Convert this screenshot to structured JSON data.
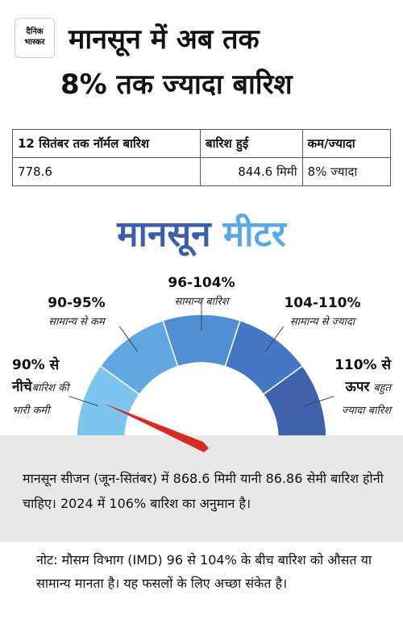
{
  "logo": {
    "line1": "दैनिक",
    "line2": "भास्कर"
  },
  "header": {
    "title_line1": "मानसून में अब तक",
    "title_line2": "8% तक ज्यादा बारिश"
  },
  "table": {
    "headers": [
      "12 सितंबर तक नॉर्मल बारिश",
      "बारिश हुई",
      "कम/ज्यादा"
    ],
    "rows": [
      [
        "778.6",
        "844.6 मिमी",
        "8% ज्यादा"
      ]
    ]
  },
  "meter": {
    "title_part1": "मानसून",
    "title_part2": "मीटर",
    "segments": [
      {
        "range": "90% से नीचे",
        "description": "बारिश की भारी कमी"
      },
      {
        "range": "90-95%",
        "description": "सामान्य से कम"
      },
      {
        "range": "96-104%",
        "description": "सामान्य बारिश"
      },
      {
        "range": "104-110%",
        "description": "सामान्य से ज्यादा"
      },
      {
        "range": "110% से ऊपर",
        "description": "बहुत ज्यादा बारिश"
      }
    ]
  },
  "info": "मानसून सीजन (जून-सितंबर) में 868.6 मिमी यानी 86.86 सेमी बारिश होनी चाहिए। 2024 में 106% बारिश का अनुमान है।",
  "note": "नोट: मौसम विभाग (IMD) 96 से 104% के बीच बारिश को औसत या सामान्य मानता है। यह फसलों के लिए अच्छा संकेत है।"
}
